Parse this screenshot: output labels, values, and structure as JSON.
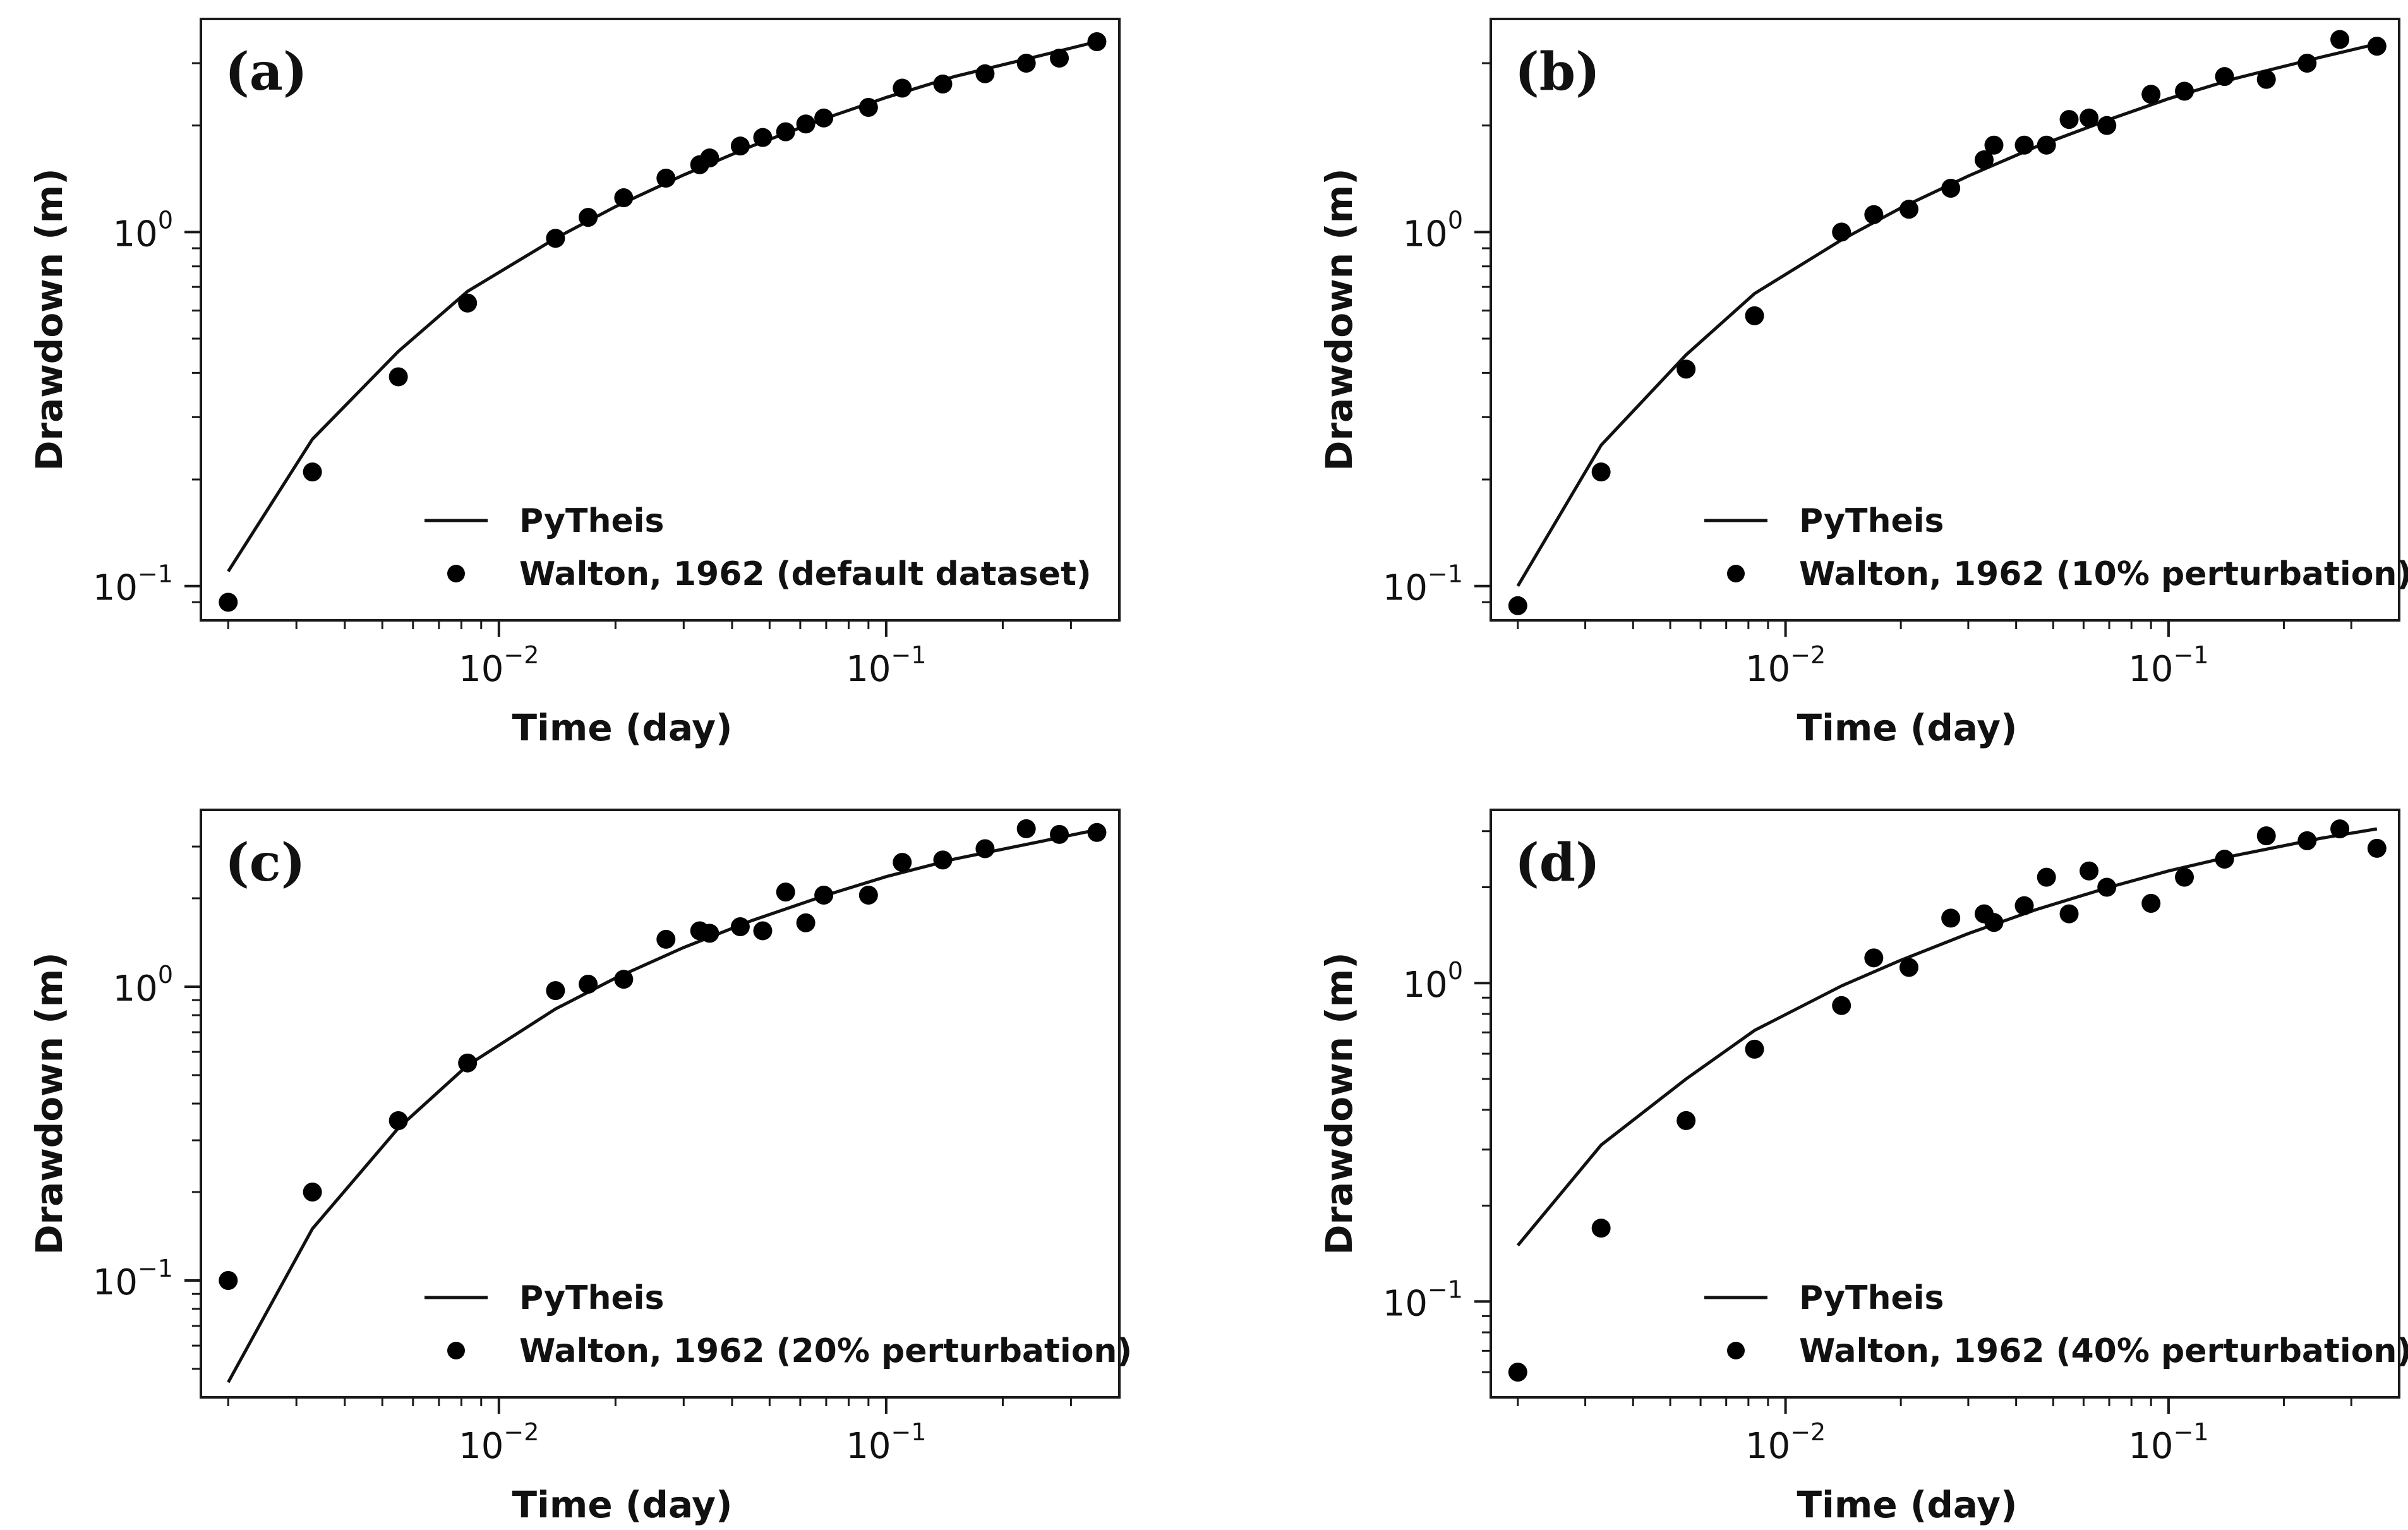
{
  "chart_data": [
    {
      "type": "scatter",
      "panel_label": "(a)",
      "xlabel": "Time (day)",
      "ylabel": "Drawdown (m)",
      "x_scale": "log",
      "y_scale": "log",
      "xlim": [
        0.0017,
        0.4
      ],
      "ylim": [
        0.08,
        4.0
      ],
      "x_ticks": [
        {
          "value": 0.01,
          "base": "10",
          "exp": "−2"
        },
        {
          "value": 0.1,
          "base": "10",
          "exp": "−1"
        }
      ],
      "y_ticks": [
        {
          "value": 0.1,
          "base": "10",
          "exp": "−1"
        },
        {
          "value": 1,
          "base": "10",
          "exp": "0"
        }
      ],
      "legend_position": "lower right",
      "series": [
        {
          "name": "PyTheis",
          "kind": "line",
          "x": [
            0.002,
            0.0033,
            0.0055,
            0.0083,
            0.014,
            0.02,
            0.03,
            0.045,
            0.07,
            0.1,
            0.15,
            0.25,
            0.35
          ],
          "y": [
            0.11,
            0.26,
            0.46,
            0.68,
            0.96,
            1.18,
            1.45,
            1.75,
            2.1,
            2.4,
            2.75,
            3.15,
            3.45
          ]
        },
        {
          "name": "Walton, 1962 (default dataset)",
          "kind": "points",
          "x": [
            0.002,
            0.0033,
            0.0055,
            0.0083,
            0.014,
            0.017,
            0.021,
            0.027,
            0.033,
            0.035,
            0.042,
            0.048,
            0.055,
            0.062,
            0.069,
            0.09,
            0.11,
            0.14,
            0.18,
            0.23,
            0.28,
            0.35
          ],
          "y": [
            0.09,
            0.21,
            0.39,
            0.63,
            0.96,
            1.1,
            1.25,
            1.42,
            1.55,
            1.62,
            1.75,
            1.85,
            1.92,
            2.02,
            2.1,
            2.25,
            2.55,
            2.62,
            2.8,
            3.0,
            3.1,
            3.45
          ]
        }
      ]
    },
    {
      "type": "scatter",
      "panel_label": "(b)",
      "xlabel": "Time (day)",
      "ylabel": "Drawdown (m)",
      "x_scale": "log",
      "y_scale": "log",
      "xlim": [
        0.0017,
        0.4
      ],
      "ylim": [
        0.08,
        4.0
      ],
      "x_ticks": [
        {
          "value": 0.01,
          "base": "10",
          "exp": "−2"
        },
        {
          "value": 0.1,
          "base": "10",
          "exp": "−1"
        }
      ],
      "y_ticks": [
        {
          "value": 0.1,
          "base": "10",
          "exp": "−1"
        },
        {
          "value": 1,
          "base": "10",
          "exp": "0"
        }
      ],
      "legend_position": "lower right",
      "series": [
        {
          "name": "PyTheis",
          "kind": "line",
          "x": [
            0.002,
            0.0033,
            0.0055,
            0.0083,
            0.014,
            0.02,
            0.03,
            0.045,
            0.07,
            0.1,
            0.15,
            0.25,
            0.35
          ],
          "y": [
            0.1,
            0.25,
            0.45,
            0.67,
            0.95,
            1.17,
            1.44,
            1.74,
            2.08,
            2.38,
            2.72,
            3.12,
            3.4
          ]
        },
        {
          "name": "Walton, 1962 (10% perturbation)",
          "kind": "points",
          "x": [
            0.002,
            0.0033,
            0.0055,
            0.0083,
            0.014,
            0.017,
            0.021,
            0.027,
            0.033,
            0.035,
            0.042,
            0.048,
            0.055,
            0.062,
            0.069,
            0.09,
            0.11,
            0.14,
            0.18,
            0.23,
            0.28,
            0.35
          ],
          "y": [
            0.088,
            0.21,
            0.41,
            0.58,
            1.0,
            1.12,
            1.16,
            1.33,
            1.6,
            1.76,
            1.76,
            1.76,
            2.08,
            2.1,
            2.0,
            2.45,
            2.5,
            2.75,
            2.7,
            3.0,
            3.5,
            3.35
          ]
        }
      ]
    },
    {
      "type": "scatter",
      "panel_label": "(c)",
      "xlabel": "Time (day)",
      "ylabel": "Drawdown (m)",
      "x_scale": "log",
      "y_scale": "log",
      "xlim": [
        0.0017,
        0.4
      ],
      "ylim": [
        0.04,
        4.0
      ],
      "x_ticks": [
        {
          "value": 0.01,
          "base": "10",
          "exp": "−2"
        },
        {
          "value": 0.1,
          "base": "10",
          "exp": "−1"
        }
      ],
      "y_ticks": [
        {
          "value": 0.1,
          "base": "10",
          "exp": "−1"
        },
        {
          "value": 1,
          "base": "10",
          "exp": "0"
        }
      ],
      "legend_position": "lower right",
      "series": [
        {
          "name": "PyTheis",
          "kind": "line",
          "x": [
            0.002,
            0.0033,
            0.0055,
            0.0083,
            0.014,
            0.02,
            0.03,
            0.045,
            0.07,
            0.1,
            0.15,
            0.25,
            0.35
          ],
          "y": [
            0.045,
            0.15,
            0.33,
            0.54,
            0.84,
            1.07,
            1.36,
            1.68,
            2.05,
            2.37,
            2.72,
            3.12,
            3.42
          ]
        },
        {
          "name": "Walton, 1962 (20% perturbation)",
          "kind": "points",
          "x": [
            0.002,
            0.0033,
            0.0055,
            0.0083,
            0.014,
            0.017,
            0.021,
            0.027,
            0.033,
            0.035,
            0.042,
            0.048,
            0.055,
            0.062,
            0.069,
            0.09,
            0.11,
            0.14,
            0.18,
            0.23,
            0.28,
            0.35
          ],
          "y": [
            0.1,
            0.2,
            0.35,
            0.55,
            0.97,
            1.02,
            1.06,
            1.45,
            1.55,
            1.52,
            1.6,
            1.55,
            2.1,
            1.65,
            2.05,
            2.05,
            2.65,
            2.7,
            2.95,
            3.45,
            3.3,
            3.35
          ]
        }
      ]
    },
    {
      "type": "scatter",
      "panel_label": "(d)",
      "xlabel": "Time (day)",
      "ylabel": "Drawdown (m)",
      "x_scale": "log",
      "y_scale": "log",
      "xlim": [
        0.0017,
        0.4
      ],
      "ylim": [
        0.05,
        3.5
      ],
      "x_ticks": [
        {
          "value": 0.01,
          "base": "10",
          "exp": "−2"
        },
        {
          "value": 0.1,
          "base": "10",
          "exp": "−1"
        }
      ],
      "y_ticks": [
        {
          "value": 0.1,
          "base": "10",
          "exp": "−1"
        },
        {
          "value": 1,
          "base": "10",
          "exp": "0"
        }
      ],
      "legend_position": "lower right",
      "series": [
        {
          "name": "PyTheis",
          "kind": "line",
          "x": [
            0.002,
            0.0033,
            0.0055,
            0.0083,
            0.014,
            0.02,
            0.03,
            0.045,
            0.07,
            0.1,
            0.15,
            0.25,
            0.35
          ],
          "y": [
            0.15,
            0.31,
            0.5,
            0.71,
            0.98,
            1.18,
            1.43,
            1.7,
            2.0,
            2.25,
            2.52,
            2.85,
            3.05
          ]
        },
        {
          "name": "Walton, 1962 (40% perturbation)",
          "kind": "points",
          "x": [
            0.002,
            0.0033,
            0.0055,
            0.0083,
            0.014,
            0.017,
            0.021,
            0.027,
            0.033,
            0.035,
            0.042,
            0.048,
            0.055,
            0.062,
            0.069,
            0.09,
            0.11,
            0.14,
            0.18,
            0.23,
            0.28,
            0.35
          ],
          "y": [
            0.06,
            0.17,
            0.37,
            0.62,
            0.85,
            1.2,
            1.12,
            1.6,
            1.65,
            1.55,
            1.75,
            2.15,
            1.65,
            2.25,
            2.0,
            1.78,
            2.15,
            2.45,
            2.9,
            2.8,
            3.05,
            2.65
          ]
        }
      ]
    }
  ]
}
